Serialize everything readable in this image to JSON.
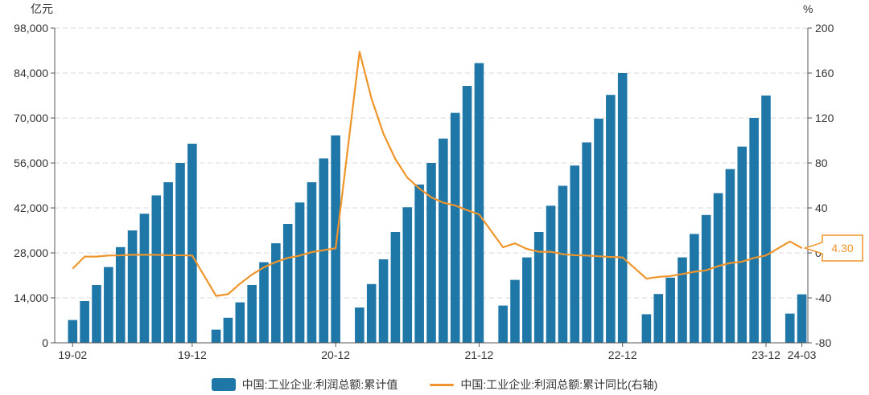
{
  "chart_data": {
    "type": "bar",
    "left_unit": "亿元",
    "right_unit": "%",
    "y_left": {
      "min": 0,
      "max": 98000,
      "ticks": [
        0,
        14000,
        28000,
        42000,
        56000,
        70000,
        84000,
        98000
      ],
      "tick_labels": [
        "0",
        "14,000",
        "28,000",
        "42,000",
        "56,000",
        "70,000",
        "84,000",
        "98,000"
      ]
    },
    "y_right": {
      "min": -80,
      "max": 200,
      "ticks": [
        -80,
        -40,
        0,
        40,
        80,
        120,
        160,
        200
      ],
      "tick_labels": [
        "-80",
        "-40",
        "0",
        "40",
        "80",
        "120",
        "160",
        "200"
      ]
    },
    "x_tick_labels": [
      {
        "label": "19-02",
        "at": "19-02"
      },
      {
        "label": "19-12",
        "at": "19-12"
      },
      {
        "label": "20-12",
        "at": "20-12"
      },
      {
        "label": "21-12",
        "at": "21-12"
      },
      {
        "label": "22-12",
        "at": "22-12"
      },
      {
        "label": "23-12",
        "at": "23-12"
      },
      {
        "label": "24-03",
        "at": "24-03"
      }
    ],
    "categories": [
      "19-01",
      "19-02",
      "19-03",
      "19-04",
      "19-05",
      "19-06",
      "19-07",
      "19-08",
      "19-09",
      "19-10",
      "19-11",
      "19-12",
      "20-01",
      "20-02",
      "20-03",
      "20-04",
      "20-05",
      "20-06",
      "20-07",
      "20-08",
      "20-09",
      "20-10",
      "20-11",
      "20-12",
      "21-01",
      "21-02",
      "21-03",
      "21-04",
      "21-05",
      "21-06",
      "21-07",
      "21-08",
      "21-09",
      "21-10",
      "21-11",
      "21-12",
      "22-01",
      "22-02",
      "22-03",
      "22-04",
      "22-05",
      "22-06",
      "22-07",
      "22-08",
      "22-09",
      "22-10",
      "22-11",
      "22-12",
      "23-01",
      "23-02",
      "23-03",
      "23-04",
      "23-05",
      "23-06",
      "23-07",
      "23-08",
      "23-09",
      "23-10",
      "23-11",
      "23-12",
      "24-01",
      "24-02",
      "24-03"
    ],
    "series": [
      {
        "name": "中国:工业企业:利润总额:累计值",
        "type": "bar",
        "axis": "left",
        "color": "#1f77a8",
        "values": [
          null,
          7100,
          13000,
          18000,
          23600,
          29800,
          35000,
          40200,
          45900,
          50000,
          56000,
          62000,
          null,
          4100,
          7800,
          12600,
          18000,
          25100,
          31000,
          37000,
          43700,
          50000,
          57400,
          64600,
          null,
          11000,
          18300,
          26000,
          34500,
          42200,
          49300,
          56000,
          63600,
          71600,
          80000,
          87100,
          null,
          11600,
          19600,
          26600,
          34500,
          42700,
          48900,
          55200,
          62400,
          69800,
          77200,
          84000,
          null,
          8900,
          15200,
          20300,
          26600,
          33900,
          39800,
          46600,
          54100,
          61100,
          70000,
          77000,
          null,
          9100,
          15100
        ]
      },
      {
        "name": "中国:工业企业:利润总额:累计同比(右轴)",
        "type": "line",
        "axis": "right",
        "color": "#f0952b",
        "values": [
          null,
          -14,
          -3.3,
          -3.3,
          -2.3,
          -2.2,
          -1.7,
          -1.7,
          -1.7,
          -2.1,
          -2.1,
          -2.3,
          null,
          -38.3,
          -36.7,
          -27.4,
          -19.3,
          -12.8,
          -8.1,
          -4.4,
          -2.4,
          0.7,
          2.4,
          4.1,
          null,
          178.9,
          137.3,
          106,
          83.4,
          66.9,
          57.3,
          49.5,
          44.7,
          42.2,
          38,
          34.3,
          null,
          5,
          8.5,
          3.5,
          1,
          1,
          -1.1,
          -2.1,
          -2.3,
          -3,
          -3.6,
          -4,
          null,
          -22.9,
          -21.4,
          -20.6,
          -18.8,
          -16.8,
          -15.5,
          -11.7,
          -9,
          -7.8,
          -4.4,
          -2.3,
          null,
          10.2,
          4.3
        ]
      }
    ],
    "last_value_label": "4.30",
    "grid": true,
    "legend": "bottom-center"
  }
}
